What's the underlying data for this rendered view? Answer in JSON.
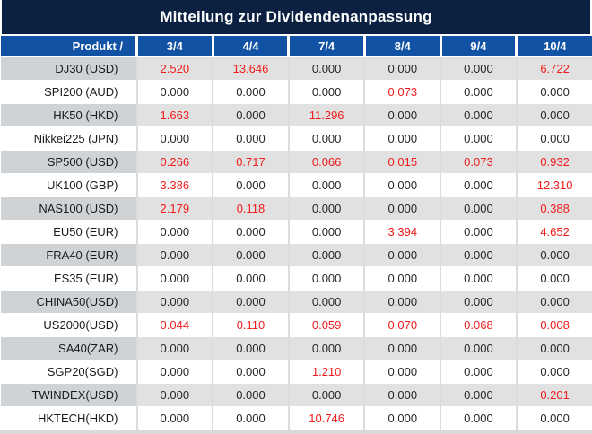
{
  "title": "Mitteilung zur Dividendenanpassung",
  "colors": {
    "title_bg": "#0c2142",
    "header_bg": "#1252a4",
    "alt_row_product_bg": "#d0d3d6",
    "alt_row_value_bg": "#e1e1e1",
    "divider": "#dcdcdc",
    "value_text": "#262626",
    "highlight_red": "#f21b1b"
  },
  "table": {
    "product_header": "Produkt /",
    "date_headers": [
      "3/4",
      "4/4",
      "7/4",
      "8/4",
      "9/4",
      "10/4"
    ],
    "rows": [
      {
        "product": "DJ30 (USD)",
        "values": [
          "2.520",
          "13.646",
          "0.000",
          "0.000",
          "0.000",
          "6.722"
        ],
        "red": [
          true,
          true,
          false,
          false,
          false,
          true
        ]
      },
      {
        "product": "SPI200 (AUD)",
        "values": [
          "0.000",
          "0.000",
          "0.000",
          "0.073",
          "0.000",
          "0.000"
        ],
        "red": [
          false,
          false,
          false,
          true,
          false,
          false
        ]
      },
      {
        "product": "HK50 (HKD)",
        "values": [
          "1.663",
          "0.000",
          "11.296",
          "0.000",
          "0.000",
          "0.000"
        ],
        "red": [
          true,
          false,
          true,
          false,
          false,
          false
        ]
      },
      {
        "product": "Nikkei225 (JPN)",
        "values": [
          "0.000",
          "0.000",
          "0.000",
          "0.000",
          "0.000",
          "0.000"
        ],
        "red": [
          false,
          false,
          false,
          false,
          false,
          false
        ]
      },
      {
        "product": "SP500 (USD)",
        "values": [
          "0.266",
          "0.717",
          "0.066",
          "0.015",
          "0.073",
          "0.932"
        ],
        "red": [
          true,
          true,
          true,
          true,
          true,
          true
        ]
      },
      {
        "product": "UK100 (GBP)",
        "values": [
          "3.386",
          "0.000",
          "0.000",
          "0.000",
          "0.000",
          "12.310"
        ],
        "red": [
          true,
          false,
          false,
          false,
          false,
          true
        ]
      },
      {
        "product": "NAS100 (USD)",
        "values": [
          "2.179",
          "0.118",
          "0.000",
          "0.000",
          "0.000",
          "0.388"
        ],
        "red": [
          true,
          true,
          false,
          false,
          false,
          true
        ]
      },
      {
        "product": "EU50 (EUR)",
        "values": [
          "0.000",
          "0.000",
          "0.000",
          "3.394",
          "0.000",
          "4.652"
        ],
        "red": [
          false,
          false,
          false,
          true,
          false,
          true
        ]
      },
      {
        "product": "FRA40 (EUR)",
        "values": [
          "0.000",
          "0.000",
          "0.000",
          "0.000",
          "0.000",
          "0.000"
        ],
        "red": [
          false,
          false,
          false,
          false,
          false,
          false
        ]
      },
      {
        "product": "ES35 (EUR)",
        "values": [
          "0.000",
          "0.000",
          "0.000",
          "0.000",
          "0.000",
          "0.000"
        ],
        "red": [
          false,
          false,
          false,
          false,
          false,
          false
        ]
      },
      {
        "product": "CHINA50(USD)",
        "values": [
          "0.000",
          "0.000",
          "0.000",
          "0.000",
          "0.000",
          "0.000"
        ],
        "red": [
          false,
          false,
          false,
          false,
          false,
          false
        ]
      },
      {
        "product": "US2000(USD)",
        "values": [
          "0.044",
          "0.110",
          "0.059",
          "0.070",
          "0.068",
          "0.008"
        ],
        "red": [
          true,
          true,
          true,
          true,
          true,
          true
        ]
      },
      {
        "product": "SA40(ZAR)",
        "values": [
          "0.000",
          "0.000",
          "0.000",
          "0.000",
          "0.000",
          "0.000"
        ],
        "red": [
          false,
          false,
          false,
          false,
          false,
          false
        ]
      },
      {
        "product": "SGP20(SGD)",
        "values": [
          "0.000",
          "0.000",
          "1.210",
          "0.000",
          "0.000",
          "0.000"
        ],
        "red": [
          false,
          false,
          true,
          false,
          false,
          false
        ]
      },
      {
        "product": "TWINDEX(USD)",
        "values": [
          "0.000",
          "0.000",
          "0.000",
          "0.000",
          "0.000",
          "0.201"
        ],
        "red": [
          false,
          false,
          false,
          false,
          false,
          true
        ]
      },
      {
        "product": "HKTECH(HKD)",
        "values": [
          "0.000",
          "0.000",
          "10.746",
          "0.000",
          "0.000",
          "0.000"
        ],
        "red": [
          false,
          false,
          true,
          false,
          false,
          false
        ]
      }
    ]
  }
}
